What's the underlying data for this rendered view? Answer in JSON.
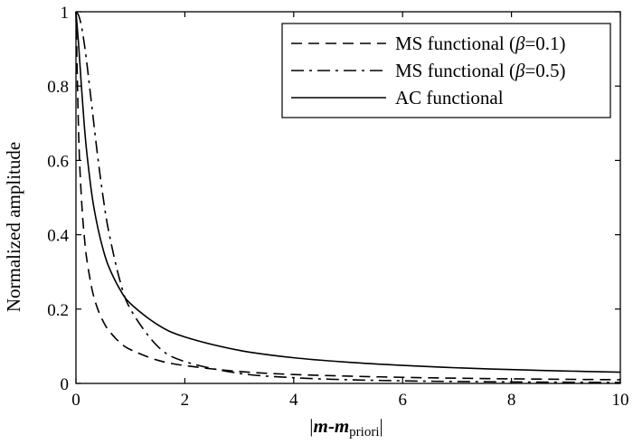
{
  "chart_data": {
    "type": "line",
    "xlabel": {
      "prefix": "|",
      "bold1": "m",
      "dash": "-",
      "bold2": "m",
      "sub": "priori",
      "suffix": "|"
    },
    "ylabel": "Normalized amplitude",
    "xlim": [
      0,
      10
    ],
    "ylim": [
      0,
      1
    ],
    "x_ticks": [
      "0",
      "2",
      "4",
      "6",
      "8",
      "10"
    ],
    "y_ticks": [
      "0",
      "0.2",
      "0.4",
      "0.6",
      "0.8",
      "1"
    ],
    "grid": false,
    "legend_position": "top-right",
    "series": [
      {
        "name": "MS functional (β=0.1)",
        "legend_parts": {
          "pre": "MS functional (",
          "greek": "β",
          "post": "=0.1)"
        },
        "line_style": "dashed",
        "x": [
          0,
          0.05,
          0.1,
          0.15,
          0.2,
          0.3,
          0.4,
          0.5,
          0.6,
          0.8,
          1,
          1.5,
          2,
          3,
          4,
          5,
          6,
          7,
          8,
          9,
          10
        ],
        "y": [
          1,
          0.667,
          0.5,
          0.4,
          0.333,
          0.25,
          0.2,
          0.167,
          0.143,
          0.111,
          0.091,
          0.0625,
          0.048,
          0.032,
          0.024,
          0.0196,
          0.0164,
          0.014,
          0.0123,
          0.011,
          0.0099
        ]
      },
      {
        "name": "MS functional (β=0.5)",
        "legend_parts": {
          "pre": "MS functional (",
          "greek": "β",
          "post": "=0.5)"
        },
        "line_style": "dashdot",
        "x": [
          0,
          0.05,
          0.1,
          0.15,
          0.2,
          0.3,
          0.4,
          0.5,
          0.6,
          0.8,
          1,
          1.5,
          2,
          3,
          4,
          5,
          6,
          7,
          8,
          9,
          10
        ],
        "y": [
          1,
          0.99,
          0.962,
          0.917,
          0.862,
          0.735,
          0.61,
          0.5,
          0.41,
          0.281,
          0.2,
          0.1,
          0.0588,
          0.027,
          0.0154,
          0.0099,
          0.0069,
          0.0051,
          0.0039,
          0.0031,
          0.0025
        ]
      },
      {
        "name": "AC functional",
        "legend_parts": {
          "pre": "AC functional",
          "greek": "",
          "post": ""
        },
        "line_style": "solid",
        "x": [
          0,
          0.05,
          0.1,
          0.15,
          0.2,
          0.3,
          0.4,
          0.5,
          0.6,
          0.8,
          1,
          1.5,
          2,
          3,
          4,
          5,
          6,
          7,
          8,
          9,
          10
        ],
        "y": [
          1,
          0.909,
          0.8,
          0.7,
          0.62,
          0.5,
          0.42,
          0.36,
          0.315,
          0.255,
          0.215,
          0.158,
          0.125,
          0.089,
          0.069,
          0.057,
          0.0485,
          0.042,
          0.0372,
          0.0334,
          0.0303
        ]
      }
    ]
  }
}
